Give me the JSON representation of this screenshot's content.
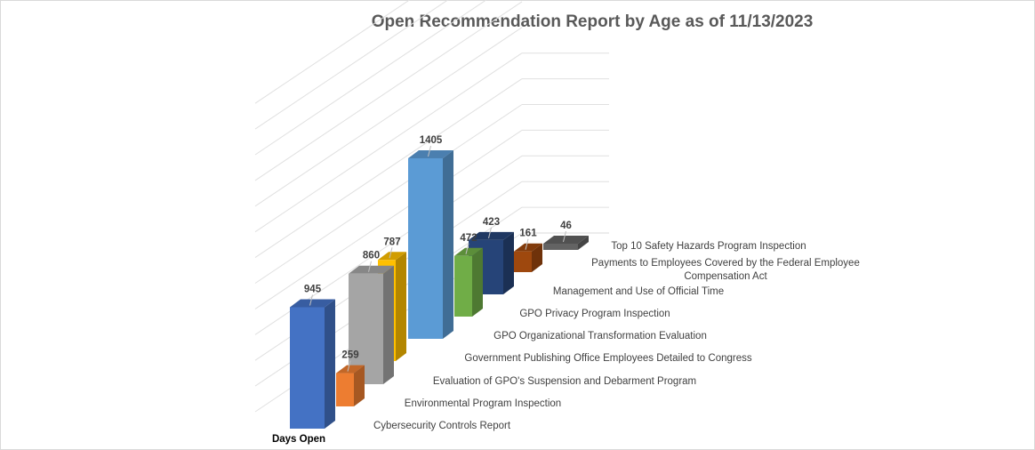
{
  "chart_data": {
    "type": "bar",
    "variant": "3d-column",
    "title": "Open Recommendation Report by Age as of 11/13/2023",
    "series_name": "Days Open",
    "categories": [
      "Cybersecurity Controls Report",
      "Environmental Program Inspection",
      "Evaluation of GPO's Suspension and Debarment Program",
      "Government Publishing Office Employees Detailed to Congress",
      "GPO Organizational Transformation Evaluation",
      "GPO Privacy Program Inspection",
      "Management and Use of Official Time",
      "Payments to Employees Covered by the Federal Employee Compensation Act",
      "Top 10 Safety Hazards Program Inspection"
    ],
    "category_label_lines": [
      [
        "Cybersecurity Controls Report"
      ],
      [
        "Environmental Program Inspection"
      ],
      [
        "Evaluation of GPO's Suspension and Debarment Program"
      ],
      [
        "Government Publishing Office Employees Detailed to Congress"
      ],
      [
        "GPO Organizational Transformation Evaluation"
      ],
      [
        "GPO Privacy Program Inspection"
      ],
      [
        "Management and Use of Official Time"
      ],
      [
        "Payments to Employees Covered by the Federal Employee",
        "Compensation Act"
      ],
      [
        "Top 10 Safety Hazards Program Inspection"
      ]
    ],
    "values": [
      945,
      259,
      860,
      787,
      1405,
      472,
      423,
      161,
      46
    ],
    "data_labels": [
      "945",
      "259",
      "860",
      "787",
      "1405",
      "472",
      "423",
      "161",
      "46"
    ],
    "colors": [
      "#4472c4",
      "#ed7d31",
      "#a5a5a5",
      "#ffc000",
      "#5b9bd5",
      "#70ad47",
      "#264478",
      "#9e480e",
      "#636363"
    ],
    "xlabel": "",
    "ylabel": "",
    "ylim": [
      0,
      2400
    ],
    "grid": true,
    "legend": "none"
  }
}
